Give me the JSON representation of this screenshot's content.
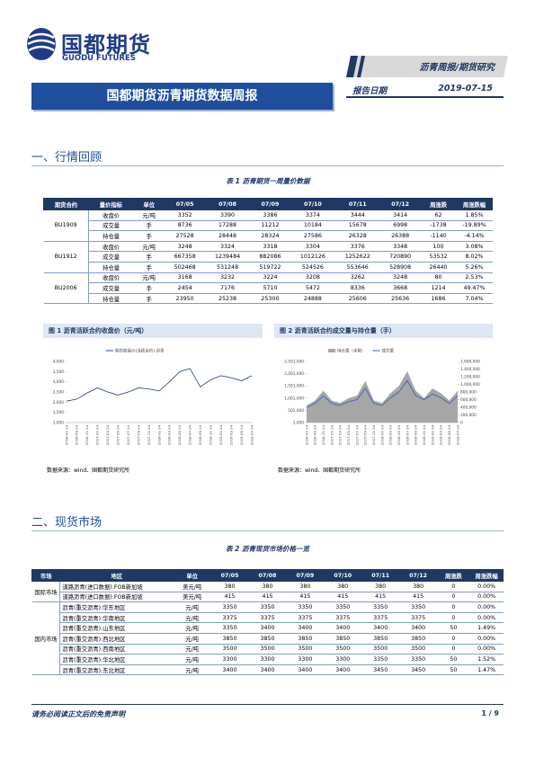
{
  "header": {
    "logo_cn": "国都期货",
    "logo_en": "GUODU FUTURES",
    "category": "沥青周报/期货研究",
    "title": "国都期货沥青期货数据周报",
    "date_label": "报告日期",
    "date": "2019-07-15"
  },
  "sections": [
    "一、行情回顾",
    "二、现货市场"
  ],
  "table1": {
    "caption": "表 1 沥青期货一周量价数据",
    "headers": [
      "期货合约",
      "量价指标",
      "单位",
      "07/05",
      "07/08",
      "07/09",
      "07/10",
      "07/11",
      "07/12",
      "周涨跌",
      "周涨跌幅"
    ],
    "groups": [
      {
        "contract": "BU1909",
        "rows": [
          [
            "收盘价",
            "元/吨",
            "3352",
            "3390",
            "3386",
            "3374",
            "3444",
            "3414",
            "62",
            "1.85%"
          ],
          [
            "成交量",
            "手",
            "8736",
            "17288",
            "11212",
            "10184",
            "15678",
            "6998",
            "-1738",
            "-19.89%"
          ],
          [
            "持仓量",
            "手",
            "27528",
            "28448",
            "28324",
            "27586",
            "26328",
            "26388",
            "-1140",
            "-4.14%"
          ]
        ]
      },
      {
        "contract": "BU1912",
        "rows": [
          [
            "收盘价",
            "元/吨",
            "3248",
            "3324",
            "3318",
            "3304",
            "3376",
            "3348",
            "100",
            "3.08%"
          ],
          [
            "成交量",
            "手",
            "667358",
            "1239484",
            "882086",
            "1012126",
            "1252622",
            "720890",
            "53532",
            "8.02%"
          ],
          [
            "持仓量",
            "手",
            "502468",
            "531248",
            "519722",
            "524526",
            "553646",
            "528908",
            "26440",
            "5.26%"
          ]
        ]
      },
      {
        "contract": "BU2006",
        "rows": [
          [
            "收盘价",
            "元/吨",
            "3168",
            "3232",
            "3224",
            "3208",
            "3262",
            "3248",
            "80",
            "2.53%"
          ],
          [
            "成交量",
            "手",
            "2454",
            "7176",
            "5710",
            "5472",
            "8336",
            "3668",
            "1214",
            "49.47%"
          ],
          [
            "持仓量",
            "手",
            "23950",
            "25238",
            "25300",
            "24888",
            "25606",
            "25636",
            "1686",
            "7.04%"
          ]
        ]
      }
    ]
  },
  "figure_sources": [
    "数据来源：wind、国都期货研究所",
    "数据来源：wind、国都期货研究所"
  ],
  "chart_data": [
    {
      "type": "line",
      "title": "图 1 沥青活跃合约收盘价（元/吨）",
      "categories": [
        "2016-07-14",
        "2016-09-14",
        "2016-11-14",
        "2017-01-14",
        "2017-03-14",
        "2017-05-14",
        "2017-07-14",
        "2017-09-14",
        "2017-11-14",
        "2018-01-14",
        "2018-03-14",
        "2018-05-14",
        "2018-07-14",
        "2018-09-14",
        "2018-11-14",
        "2019-01-14",
        "2019-03-14",
        "2019-05-14",
        "2019-07-14"
      ],
      "series": [
        {
          "name": "期货收盘价(活跃合约):沥青",
          "color": "#1f3c88",
          "type": "line",
          "values": [
            2050,
            2150,
            2450,
            2700,
            2500,
            2350,
            2500,
            2700,
            2650,
            2550,
            3000,
            3500,
            3650,
            2750,
            3100,
            3300,
            3200,
            3050,
            3300
          ]
        }
      ],
      "ylim": [
        1000,
        4000
      ],
      "yticks": [
        {
          "value": 1000,
          "label": "1,000"
        },
        {
          "value": 1500,
          "label": "1,500"
        },
        {
          "value": 2000,
          "label": "2,000"
        },
        {
          "value": 2500,
          "label": "2,500"
        },
        {
          "value": 3000,
          "label": "3,000"
        },
        {
          "value": 3500,
          "label": "3,500"
        },
        {
          "value": 4000,
          "label": "4,000"
        }
      ]
    },
    {
      "type": "combo",
      "title": "图 2 沥青活跃合约成交量与持仓量（手）",
      "categories": [
        "2016-07-14",
        "2016-09-14",
        "2016-11-14",
        "2017-01-14",
        "2017-03-14",
        "2017-05-14",
        "2017-07-14",
        "2017-09-14",
        "2017-11-14",
        "2018-01-14",
        "2018-03-14",
        "2018-05-14",
        "2018-07-14",
        "2018-09-14",
        "2018-11-14",
        "2019-01-14",
        "2019-03-14",
        "2019-05-14",
        "2019-07-14"
      ],
      "series": [
        {
          "name": "持仓量（手数）",
          "color": "#a6a6a6",
          "type": "area",
          "values": [
            700000,
            900000,
            1300000,
            900000,
            800000,
            1000000,
            1100000,
            1700000,
            900000,
            800000,
            1200000,
            1500000,
            2100000,
            1300000,
            1000000,
            1400000,
            1200000,
            900000,
            1300000
          ]
        },
        {
          "name": "成交量",
          "color": "#2e5fb4",
          "type": "line",
          "axis": "y2",
          "values": [
            400000,
            500000,
            700000,
            500000,
            450000,
            550000,
            600000,
            900000,
            500000,
            450000,
            650000,
            800000,
            1100000,
            700000,
            600000,
            750000,
            650000,
            500000,
            700000
          ]
        }
      ],
      "ylim": [
        1000,
        2501000
      ],
      "yticks": [
        {
          "value": 1000,
          "label": "1,000"
        },
        {
          "value": 501000,
          "label": "501,000"
        },
        {
          "value": 1001000,
          "label": "1,001,000"
        },
        {
          "value": 1501000,
          "label": "1,501,000"
        },
        {
          "value": 2001000,
          "label": "2,001,000"
        },
        {
          "value": 2501000,
          "label": "2,501,000"
        }
      ],
      "y2lim": [
        0,
        1600000
      ],
      "y2ticks": [
        0,
        {
          "value": 200000,
          "label": "200,000"
        },
        {
          "value": 400000,
          "label": "400,000"
        },
        {
          "value": 600000,
          "label": "600,000"
        },
        {
          "value": 800000,
          "label": "800,000"
        },
        {
          "value": 1000000,
          "label": "1,000,000"
        },
        {
          "value": 1200000,
          "label": "1,200,000"
        },
        {
          "value": 1400000,
          "label": "1,400,000"
        },
        {
          "value": 1600000,
          "label": "1,600,000"
        }
      ]
    }
  ],
  "table2": {
    "caption": "表 2 沥青现货市场价格一览",
    "headers": [
      "市场",
      "地区",
      "单位",
      "07/05",
      "07/08",
      "07/09",
      "07/10",
      "07/11",
      "07/12",
      "周涨跌",
      "周涨跌幅"
    ],
    "groups": [
      {
        "market": "国际市场",
        "rows": [
          [
            "道路沥青(进口数据):FOB新加坡",
            "美元/吨",
            "380",
            "380",
            "380",
            "380",
            "380",
            "380",
            "0",
            "0.00%"
          ],
          [
            "道路沥青(进口数据):FOB新加坡",
            "美元/吨",
            "415",
            "415",
            "415",
            "415",
            "415",
            "415",
            "0",
            "0.00%"
          ]
        ]
      },
      {
        "market": "国内市场",
        "rows": [
          [
            "沥青(重交沥青):华东地区",
            "元/吨",
            "3350",
            "3350",
            "3350",
            "3350",
            "3350",
            "3350",
            "0",
            "0.00%"
          ],
          [
            "沥青(重交沥青):华南地区",
            "元/吨",
            "3375",
            "3375",
            "3375",
            "3375",
            "3375",
            "3375",
            "0",
            "0.00%"
          ],
          [
            "沥青(重交沥青):山东地区",
            "元/吨",
            "3350",
            "3400",
            "3400",
            "3400",
            "3400",
            "3400",
            "50",
            "1.49%"
          ],
          [
            "沥青(重交沥青):西北地区",
            "元/吨",
            "3850",
            "3850",
            "3850",
            "3850",
            "3850",
            "3850",
            "0",
            "0.00%"
          ],
          [
            "沥青(重交沥青):西南地区",
            "元/吨",
            "3500",
            "3500",
            "3500",
            "3500",
            "3500",
            "3500",
            "0",
            "0.00%"
          ],
          [
            "沥青(重交沥青):华北地区",
            "元/吨",
            "3300",
            "3300",
            "3300",
            "3300",
            "3350",
            "3350",
            "50",
            "1.52%"
          ],
          [
            "沥青(重交沥青):东北地区",
            "元/吨",
            "3400",
            "3400",
            "3400",
            "3400",
            "3450",
            "3450",
            "50",
            "1.47%"
          ]
        ]
      }
    ]
  },
  "footer": {
    "disclaimer": "请务必阅读正文后的免责声明",
    "page": "1 / 9"
  }
}
